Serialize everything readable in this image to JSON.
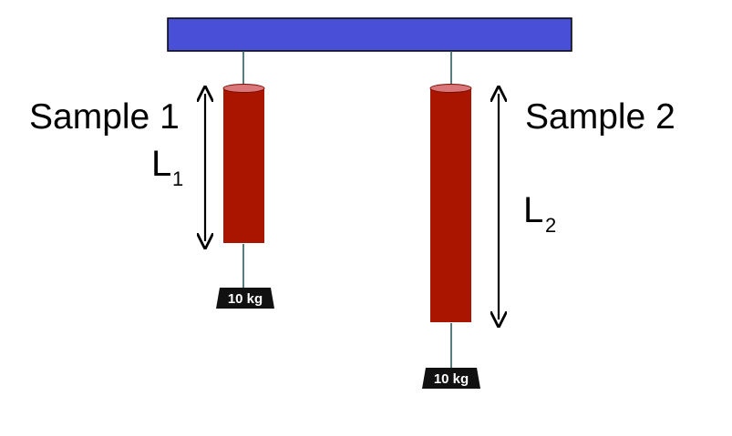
{
  "colors": {
    "support_beam": "#4a4fd8",
    "sample_body": "#aa1500",
    "sample_top": "#d9777a",
    "weight": "#111111",
    "string": "#2f5b5b",
    "text": "#000000"
  },
  "sample1": {
    "name": "Sample 1",
    "length_symbol": "L",
    "length_subscript": "1",
    "weight_label": "10 kg"
  },
  "sample2": {
    "name": "Sample 2",
    "length_symbol": "L",
    "length_subscript": "2",
    "weight_label": "10 kg"
  }
}
